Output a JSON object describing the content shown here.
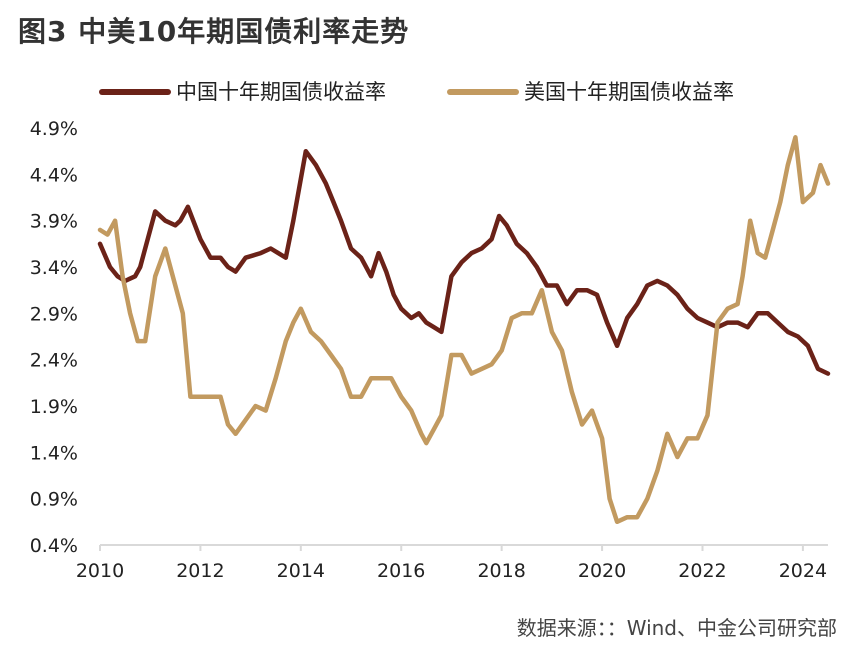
{
  "figure": {
    "title": "图3  中美10年期国债利率走势",
    "source": "数据来源：：Wind、中金公司研究部"
  },
  "chart_data": {
    "type": "line",
    "title": "图3  中美10年期国债利率走势",
    "xlabel": "",
    "ylabel": "",
    "xlim": [
      2010,
      2024.5
    ],
    "ylim": [
      0.4,
      4.9
    ],
    "x_ticks": [
      "2010",
      "2012",
      "2014",
      "2016",
      "2018",
      "2020",
      "2022",
      "2024"
    ],
    "y_ticks": [
      "4.9%",
      "4.4%",
      "3.9%",
      "3.4%",
      "2.9%",
      "2.4%",
      "1.9%",
      "1.4%",
      "0.9%",
      "0.4%"
    ],
    "legend_position": "top",
    "grid": false,
    "series": [
      {
        "name": "中国十年期国债收益率",
        "color": "#6b2218",
        "x": [
          2010.0,
          2010.2,
          2010.35,
          2010.5,
          2010.7,
          2010.8,
          2011.0,
          2011.1,
          2011.3,
          2011.5,
          2011.6,
          2011.75,
          2012.0,
          2012.2,
          2012.4,
          2012.55,
          2012.7,
          2012.9,
          2013.2,
          2013.4,
          2013.55,
          2013.7,
          2013.85,
          2013.95,
          2014.1,
          2014.3,
          2014.5,
          2014.65,
          2014.8,
          2015.0,
          2015.2,
          2015.4,
          2015.55,
          2015.7,
          2015.85,
          2016.0,
          2016.2,
          2016.35,
          2016.5,
          2016.65,
          2016.8,
          2017.0,
          2017.2,
          2017.4,
          2017.6,
          2017.8,
          2017.95,
          2018.1,
          2018.3,
          2018.5,
          2018.7,
          2018.9,
          2019.1,
          2019.3,
          2019.5,
          2019.7,
          2019.9,
          2020.1,
          2020.3,
          2020.5,
          2020.7,
          2020.9,
          2021.1,
          2021.3,
          2021.5,
          2021.7,
          2021.9,
          2022.1,
          2022.3,
          2022.5,
          2022.7,
          2022.9,
          2023.1,
          2023.3,
          2023.5,
          2023.7,
          2023.9,
          2024.1,
          2024.3,
          2024.5
        ],
        "values": [
          3.65,
          3.4,
          3.3,
          3.25,
          3.3,
          3.4,
          3.8,
          4.0,
          3.9,
          3.85,
          3.9,
          4.05,
          3.7,
          3.5,
          3.5,
          3.4,
          3.35,
          3.5,
          3.55,
          3.6,
          3.55,
          3.5,
          3.9,
          4.2,
          4.65,
          4.5,
          4.3,
          4.1,
          3.9,
          3.6,
          3.5,
          3.3,
          3.55,
          3.35,
          3.1,
          2.95,
          2.85,
          2.9,
          2.8,
          2.75,
          2.7,
          3.3,
          3.45,
          3.55,
          3.6,
          3.7,
          3.95,
          3.85,
          3.65,
          3.55,
          3.4,
          3.2,
          3.2,
          3.0,
          3.15,
          3.15,
          3.1,
          2.8,
          2.55,
          2.85,
          3.0,
          3.2,
          3.25,
          3.2,
          3.1,
          2.95,
          2.85,
          2.8,
          2.75,
          2.8,
          2.8,
          2.75,
          2.9,
          2.9,
          2.8,
          2.7,
          2.65,
          2.55,
          2.3,
          2.25
        ]
      },
      {
        "name": "美国十年期国债收益率",
        "color": "#c29a60",
        "x": [
          2010.0,
          2010.15,
          2010.3,
          2010.45,
          2010.6,
          2010.75,
          2010.9,
          2011.1,
          2011.3,
          2011.5,
          2011.65,
          2011.8,
          2012.0,
          2012.2,
          2012.4,
          2012.55,
          2012.7,
          2012.9,
          2013.1,
          2013.3,
          2013.5,
          2013.7,
          2013.85,
          2014.0,
          2014.2,
          2014.4,
          2014.6,
          2014.8,
          2015.0,
          2015.2,
          2015.4,
          2015.6,
          2015.8,
          2016.0,
          2016.2,
          2016.4,
          2016.5,
          2016.65,
          2016.8,
          2017.0,
          2017.2,
          2017.4,
          2017.6,
          2017.8,
          2018.0,
          2018.2,
          2018.4,
          2018.6,
          2018.8,
          2019.0,
          2019.2,
          2019.4,
          2019.6,
          2019.8,
          2020.0,
          2020.15,
          2020.3,
          2020.5,
          2020.7,
          2020.9,
          2021.1,
          2021.3,
          2021.5,
          2021.7,
          2021.9,
          2022.1,
          2022.3,
          2022.5,
          2022.7,
          2022.8,
          2022.95,
          2023.1,
          2023.25,
          2023.4,
          2023.55,
          2023.7,
          2023.85,
          2024.0,
          2024.2,
          2024.35,
          2024.5
        ],
        "values": [
          3.8,
          3.75,
          3.9,
          3.3,
          2.9,
          2.6,
          2.6,
          3.3,
          3.6,
          3.2,
          2.9,
          2.0,
          2.0,
          2.0,
          2.0,
          1.7,
          1.6,
          1.75,
          1.9,
          1.85,
          2.2,
          2.6,
          2.8,
          2.95,
          2.7,
          2.6,
          2.45,
          2.3,
          2.0,
          2.0,
          2.2,
          2.2,
          2.2,
          2.0,
          1.85,
          1.6,
          1.5,
          1.65,
          1.8,
          2.45,
          2.45,
          2.25,
          2.3,
          2.35,
          2.5,
          2.85,
          2.9,
          2.9,
          3.15,
          2.7,
          2.5,
          2.05,
          1.7,
          1.85,
          1.55,
          0.9,
          0.65,
          0.7,
          0.7,
          0.9,
          1.2,
          1.6,
          1.35,
          1.55,
          1.55,
          1.8,
          2.8,
          2.95,
          3.0,
          3.3,
          3.9,
          3.55,
          3.5,
          3.8,
          4.1,
          4.5,
          4.8,
          4.1,
          4.2,
          4.5,
          4.3
        ]
      }
    ]
  }
}
